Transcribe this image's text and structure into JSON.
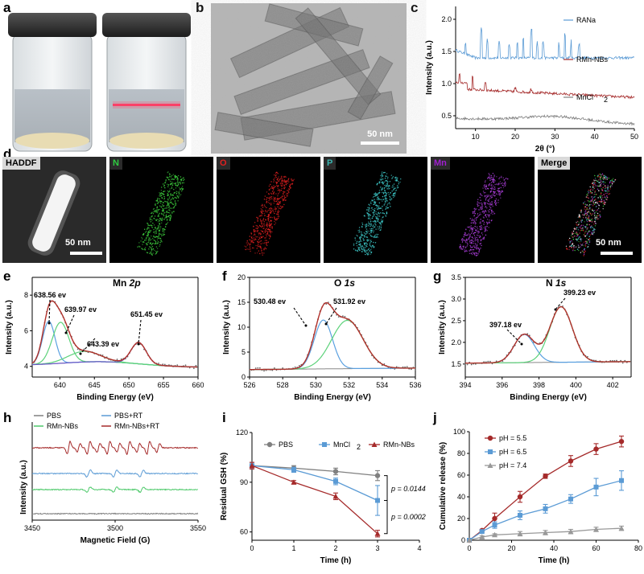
{
  "panels": {
    "a": "a",
    "b": "b",
    "c": "c",
    "d": "d",
    "e": "e",
    "f": "f",
    "g": "g",
    "h": "h",
    "i": "i",
    "j": "j"
  },
  "colors": {
    "blue": "#5b9bd5",
    "red": "#a52a2a",
    "gray": "#808080",
    "green": "#4dc96a",
    "purple": "#6b59c9",
    "peak_blue": "#5aa0e0",
    "peak_green": "#5cd27a",
    "fit_red": "#b0302a"
  },
  "tem": {
    "scale_bar": "50 nm"
  },
  "eds": {
    "tiles": [
      {
        "label": "HADDF",
        "label_color": "#000000",
        "bg": "#ffffff",
        "dot": "#ffffff",
        "scale": "50 nm"
      },
      {
        "label": "N",
        "label_color": "#2ecc40",
        "dot": "#3fd33f",
        "scale": ""
      },
      {
        "label": "O",
        "label_color": "#e02020",
        "dot": "#e02020",
        "scale": ""
      },
      {
        "label": "P",
        "label_color": "#3ab5b0",
        "dot": "#40d0d0",
        "scale": ""
      },
      {
        "label": "Mn",
        "label_color": "#a020d0",
        "dot": "#b040e0",
        "scale": ""
      },
      {
        "label": "Merge",
        "label_color": "#000000",
        "dot": "#d06080",
        "scale": "50 nm"
      }
    ]
  },
  "chart_data": [
    {
      "id": "c",
      "type": "line",
      "xlabel": "2θ (°)",
      "ylabel": "Intensity (a.u.)",
      "xlim": [
        5,
        50
      ],
      "ylim": [
        0.3,
        2.2
      ],
      "xticks": [
        10,
        20,
        30,
        40,
        50
      ],
      "yticks": [
        "0.5",
        "1.0",
        "1.5",
        "2.0"
      ],
      "series": [
        {
          "name": "RANa",
          "offset": 1.4,
          "color": "#5b9bd5"
        },
        {
          "name": "RMn-NBs",
          "offset": 0.92,
          "color": "#a52a2a"
        },
        {
          "name": "MnCl",
          "sub": "2",
          "offset": 0.46,
          "color": "#808080"
        }
      ]
    },
    {
      "id": "e",
      "type": "line",
      "title_main": "Mn ",
      "title_italic": "2p",
      "xlabel": "Binding Energy (eV)",
      "ylabel": "Intensity (a.u.)",
      "xlim": [
        636,
        660
      ],
      "ylim": [
        3.4,
        9
      ],
      "xticks": [
        640,
        645,
        650,
        655,
        660
      ],
      "yticks": [
        "4",
        "6",
        "8"
      ],
      "annotations": [
        "638.56 ev",
        "639.97 ev",
        "643.39 ev",
        "651.45 ev"
      ]
    },
    {
      "id": "f",
      "type": "line",
      "title_main": "O ",
      "title_italic": "1s",
      "xlabel": "Binding Energy (eV)",
      "ylabel": "Intensity (a.u.)",
      "xlim": [
        526,
        536
      ],
      "ylim": [
        0,
        20
      ],
      "xticks": [
        526,
        528,
        530,
        532,
        534,
        536
      ],
      "yticks": [
        "0",
        "5",
        "10",
        "15",
        "20"
      ],
      "annotations": [
        "530.48 ev",
        "531.92 ev"
      ]
    },
    {
      "id": "g",
      "type": "line",
      "title_main": "N ",
      "title_italic": "1s",
      "xlabel": "Binding Energy (eV)",
      "ylabel": "Intensity (a.u.)",
      "xlim": [
        394,
        403
      ],
      "ylim": [
        1.2,
        3.5
      ],
      "xticks": [
        394,
        396,
        398,
        400,
        402
      ],
      "yticks": [
        "1.5",
        "2.0",
        "2.5",
        "3.0",
        "3.5"
      ],
      "annotations": [
        "397.18 ev",
        "399.23 ev"
      ]
    },
    {
      "id": "h",
      "type": "line",
      "xlabel": "Magnetic Field (G)",
      "ylabel": "Intensity (a.u.)",
      "xlim": [
        3450,
        3550
      ],
      "xticks": [
        3450,
        3500,
        3550
      ],
      "series": [
        {
          "name": "PBS",
          "color": "#808080"
        },
        {
          "name": "PBS+RT",
          "color": "#5b9bd5"
        },
        {
          "name": "RMn-NBs",
          "color": "#4dc96a"
        },
        {
          "name": "RMn-NBs+RT",
          "color": "#a52a2a"
        }
      ]
    },
    {
      "id": "i",
      "type": "line",
      "xlabel": "Time (h)",
      "ylabel": "Residual GSH (%)",
      "xlim": [
        0,
        4
      ],
      "ylim": [
        55,
        120
      ],
      "xticks": [
        0,
        1,
        2,
        3,
        4
      ],
      "yticks": [
        60,
        90,
        120
      ],
      "series": [
        {
          "name": "PBS",
          "color": "#808080",
          "marker": "circle",
          "x": [
            0,
            1,
            2,
            3
          ],
          "y": [
            100,
            98.5,
            96.5,
            94
          ],
          "err": [
            2,
            1.5,
            2,
            3
          ]
        },
        {
          "name": "MnCl",
          "sub": "2",
          "color": "#5b9bd5",
          "marker": "square",
          "x": [
            0,
            1,
            2,
            3
          ],
          "y": [
            100,
            97.5,
            90.5,
            79
          ],
          "err": [
            2,
            1.5,
            2,
            9
          ]
        },
        {
          "name": "RMn-NBs",
          "color": "#a52a2a",
          "marker": "triangle",
          "x": [
            0,
            1,
            2,
            3
          ],
          "y": [
            100,
            90,
            81.5,
            59
          ],
          "err": [
            2,
            1,
            2,
            2
          ]
        }
      ],
      "pvalues": [
        "p = 0.0144",
        "p = 0.0002"
      ]
    },
    {
      "id": "j",
      "type": "line",
      "xlabel": "Time (h)",
      "ylabel": "Cumulative release (%)",
      "xlim": [
        0,
        80
      ],
      "ylim": [
        0,
        100
      ],
      "xticks": [
        0,
        20,
        40,
        60,
        80
      ],
      "yticks": [
        0,
        20,
        40,
        60,
        80,
        100
      ],
      "series": [
        {
          "name": "pH = 5.5",
          "color": "#a52a2a",
          "marker": "circle",
          "x": [
            0,
            6,
            12,
            24,
            36,
            48,
            60,
            72
          ],
          "y": [
            0,
            9,
            20,
            40,
            59,
            73,
            84,
            91
          ],
          "err": [
            0,
            1,
            5,
            5,
            2,
            5,
            5,
            5
          ]
        },
        {
          "name": "pH = 6.5",
          "color": "#5b9bd5",
          "marker": "square",
          "x": [
            0,
            6,
            12,
            24,
            36,
            48,
            60,
            72
          ],
          "y": [
            0,
            8,
            14,
            23,
            29,
            38,
            49,
            55
          ],
          "err": [
            0,
            1,
            3,
            4,
            4,
            4,
            8,
            9
          ]
        },
        {
          "name": "pH = 7.4",
          "color": "#999999",
          "marker": "triangle",
          "x": [
            0,
            6,
            12,
            24,
            36,
            48,
            60,
            72
          ],
          "y": [
            0,
            3,
            5,
            6,
            7,
            8,
            10,
            11
          ],
          "err": [
            0,
            1,
            1,
            2,
            2,
            2,
            2,
            2
          ]
        }
      ]
    }
  ]
}
